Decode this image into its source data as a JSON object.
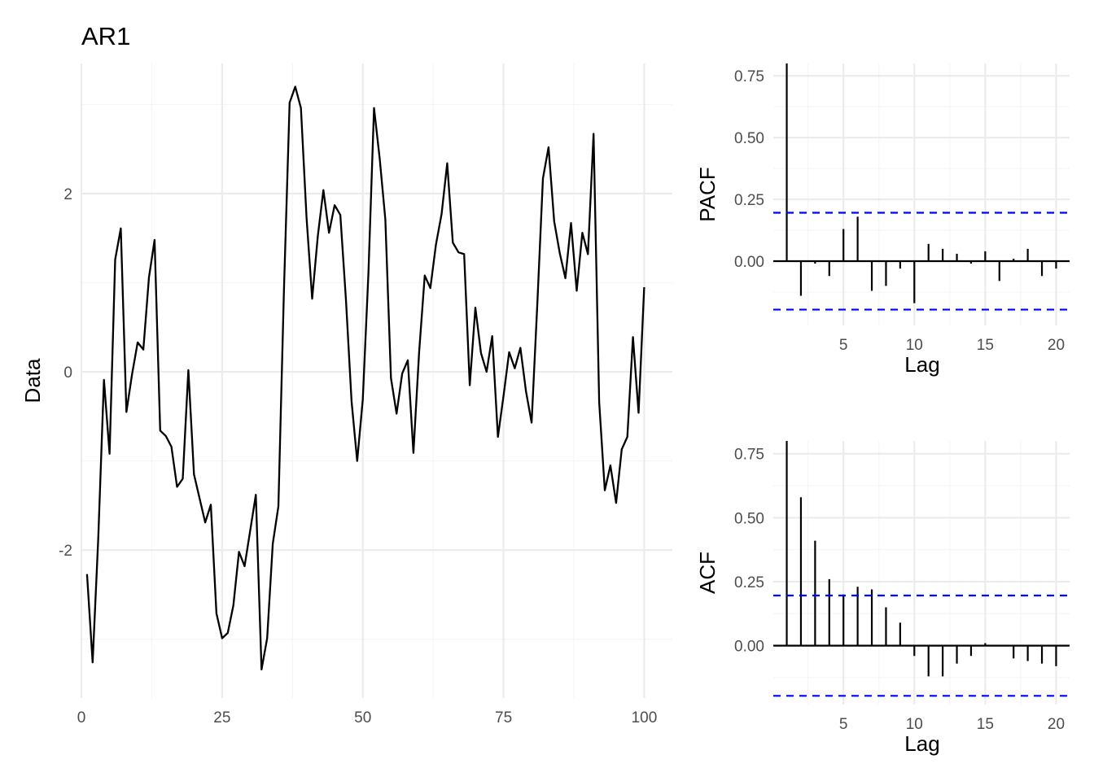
{
  "chart_data": [
    {
      "type": "line",
      "title": "AR1",
      "xlabel": "",
      "ylabel": "Data",
      "xlim": [
        0,
        105
      ],
      "ylim": [
        -3.66,
        3.46
      ],
      "xticks": [
        0,
        25,
        50,
        75,
        100
      ],
      "yticks": [
        -2,
        0,
        2
      ],
      "grid": true,
      "x": [
        1,
        2,
        3,
        4,
        5,
        6,
        7,
        8,
        9,
        10,
        11,
        12,
        13,
        14,
        15,
        16,
        17,
        18,
        19,
        20,
        21,
        22,
        23,
        24,
        25,
        26,
        27,
        28,
        29,
        30,
        31,
        32,
        33,
        34,
        35,
        36,
        37,
        38,
        39,
        40,
        41,
        42,
        43,
        44,
        45,
        46,
        47,
        48,
        49,
        50,
        51,
        52,
        53,
        54,
        55,
        56,
        57,
        58,
        59,
        60,
        61,
        62,
        63,
        64,
        65,
        66,
        67,
        68,
        69,
        70,
        71,
        72,
        73,
        74,
        75,
        76,
        77,
        78,
        79,
        80,
        81,
        82,
        83,
        84,
        85,
        86,
        87,
        88,
        89,
        90,
        91,
        92,
        93,
        94,
        95,
        96,
        97,
        98,
        99,
        100
      ],
      "values": [
        -2.27,
        -3.26,
        -1.87,
        -0.09,
        -0.92,
        1.26,
        1.61,
        -0.45,
        -0.03,
        0.33,
        0.25,
        1.06,
        1.48,
        -0.66,
        -0.72,
        -0.84,
        -1.29,
        -1.2,
        0.02,
        -1.15,
        -1.42,
        -1.69,
        -1.49,
        -2.71,
        -2.99,
        -2.93,
        -2.62,
        -2.02,
        -2.18,
        -1.78,
        -1.38,
        -3.34,
        -2.99,
        -1.93,
        -1.51,
        0.94,
        3.02,
        3.2,
        2.96,
        1.73,
        0.82,
        1.52,
        2.04,
        1.56,
        1.87,
        1.76,
        0.81,
        -0.33,
        -1.0,
        -0.31,
        1.1,
        2.96,
        2.39,
        1.71,
        -0.07,
        -0.47,
        -0.02,
        0.13,
        -0.91,
        0.22,
        1.08,
        0.94,
        1.43,
        1.77,
        2.34,
        1.45,
        1.34,
        1.32,
        -0.15,
        0.72,
        0.21,
        0.0,
        0.4,
        -0.73,
        -0.27,
        0.22,
        0.04,
        0.27,
        -0.22,
        -0.57,
        0.76,
        2.17,
        2.52,
        1.69,
        1.33,
        1.05,
        1.67,
        0.91,
        1.56,
        1.32,
        2.67,
        -0.34,
        -1.33,
        -1.05,
        -1.47,
        -0.87,
        -0.73,
        0.39,
        -0.46,
        0.95
      ]
    },
    {
      "type": "bar",
      "title": "",
      "xlabel": "Lag",
      "ylabel": "PACF",
      "xlim": [
        0.05,
        20.95
      ],
      "ylim": [
        -0.26,
        0.8
      ],
      "xticks": [
        5,
        10,
        15,
        20
      ],
      "yticks": [
        0.0,
        0.25,
        0.5,
        0.75
      ],
      "ytick_labels": [
        "0.00",
        "0.25",
        "0.50",
        "0.75"
      ],
      "confidence_bound": 0.196,
      "categories": [
        1,
        2,
        3,
        4,
        5,
        6,
        7,
        8,
        9,
        10,
        11,
        12,
        13,
        14,
        15,
        16,
        17,
        18,
        19,
        20
      ],
      "values": [
        0.8,
        -0.14,
        -0.01,
        -0.06,
        0.13,
        0.18,
        -0.12,
        -0.1,
        -0.03,
        -0.17,
        0.07,
        0.05,
        0.03,
        -0.01,
        0.04,
        -0.08,
        0.01,
        0.05,
        -0.06,
        -0.03
      ]
    },
    {
      "type": "bar",
      "title": "",
      "xlabel": "Lag",
      "ylabel": "ACF",
      "xlim": [
        0.05,
        20.95
      ],
      "ylim": [
        -0.23,
        0.8
      ],
      "xticks": [
        5,
        10,
        15,
        20
      ],
      "yticks": [
        0.0,
        0.25,
        0.5,
        0.75
      ],
      "ytick_labels": [
        "0.00",
        "0.25",
        "0.50",
        "0.75"
      ],
      "confidence_bound": 0.196,
      "categories": [
        1,
        2,
        3,
        4,
        5,
        6,
        7,
        8,
        9,
        10,
        11,
        12,
        13,
        14,
        15,
        16,
        17,
        18,
        19,
        20
      ],
      "values": [
        0.8,
        0.58,
        0.41,
        0.26,
        0.2,
        0.23,
        0.22,
        0.15,
        0.09,
        -0.04,
        -0.12,
        -0.12,
        -0.07,
        -0.04,
        0.01,
        0.0,
        -0.05,
        -0.06,
        -0.07,
        -0.08
      ]
    }
  ],
  "colors": {
    "line": "#000000",
    "bound": "#0000ff",
    "grid_major": "#ebebeb",
    "grid_minor": "#f5f5f5"
  }
}
